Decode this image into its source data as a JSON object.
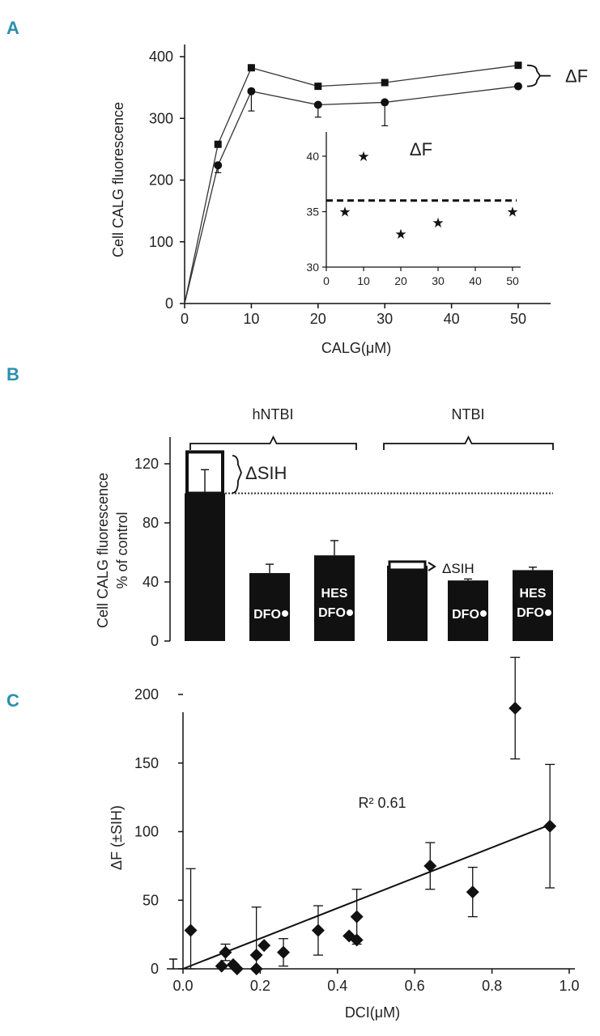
{
  "chart_data": [
    {
      "panel": "A",
      "type": "line",
      "xlabel": "CALG(μM)",
      "ylabel": "Cell CALG fluorescence",
      "xlim": [
        0,
        55
      ],
      "ylim": [
        0,
        420
      ],
      "xticks": [
        "0",
        "10",
        "20",
        "30",
        "40",
        "50"
      ],
      "yticks": [
        "0",
        "100",
        "200",
        "300",
        "400"
      ],
      "series": [
        {
          "name": "squares",
          "marker": "square",
          "x": [
            0,
            5,
            10,
            20,
            30,
            50
          ],
          "y": [
            0,
            258,
            382,
            352,
            358,
            386
          ],
          "err": [
            0,
            0,
            0,
            0,
            0,
            0
          ]
        },
        {
          "name": "circles",
          "marker": "circle",
          "x": [
            0,
            5,
            10,
            20,
            30,
            50
          ],
          "y": [
            0,
            224,
            344,
            322,
            326,
            352
          ],
          "err": [
            0,
            12,
            32,
            20,
            38,
            0
          ]
        }
      ],
      "bracket_label": "ΔF",
      "inset": {
        "type": "scatter",
        "title": "ΔF",
        "xlim": [
          0,
          55
        ],
        "ylim": [
          30,
          42
        ],
        "xticks": [
          "0",
          "10",
          "20",
          "30",
          "40",
          "50"
        ],
        "yticks": [
          "30",
          "35",
          "40"
        ],
        "marker": "★",
        "x": [
          5,
          10,
          20,
          30,
          50
        ],
        "y": [
          35,
          40,
          33,
          34,
          35
        ],
        "mean_line": 36
      }
    },
    {
      "panel": "B",
      "type": "bar",
      "ylabel_lines": [
        "Cell CALG fluorescence",
        "% of control"
      ],
      "ylim": [
        0,
        140
      ],
      "yticks": [
        "0",
        "40",
        "80",
        "120"
      ],
      "groups": [
        "hNTBI",
        "NTBI"
      ],
      "bars": [
        {
          "group": "hNTBI",
          "value": 100,
          "err": 16,
          "lines": [],
          "box_top": 128
        },
        {
          "group": "hNTBI",
          "value": 46,
          "err": 6,
          "lines": [
            "DFO"
          ]
        },
        {
          "group": "hNTBI",
          "value": 58,
          "err": 10,
          "lines": [
            "HES",
            "DFO"
          ]
        },
        {
          "group": "NTBI",
          "value": 51,
          "err": 0,
          "lines": [],
          "box_top": 51
        },
        {
          "group": "NTBI",
          "value": 41,
          "err": 1,
          "lines": [
            "DFO"
          ]
        },
        {
          "group": "NTBI",
          "value": 48,
          "err": 2,
          "lines": [
            "HES",
            "DFO"
          ]
        }
      ],
      "control_line": 100,
      "delta_label_large": "ΔSIH",
      "delta_label_small": "ΔSIH"
    },
    {
      "panel": "C",
      "type": "scatter",
      "xlabel": "DCI(μM)",
      "ylabel": "ΔF (±SIH)",
      "xlim": [
        -0.05,
        1.0
      ],
      "ylim": [
        0,
        240
      ],
      "xticks": [
        "0.0",
        "0.2",
        "0.4",
        "0.6",
        "0.8",
        "1.0"
      ],
      "yticks": [
        "0",
        "50",
        "100",
        "150",
        "200"
      ],
      "annotation": "R² 0.61",
      "regression": {
        "x0": 0.0,
        "y0": 0,
        "x1": 0.95,
        "y1": 105
      },
      "points": [
        {
          "x": 0.02,
          "y": 28,
          "err": 45
        },
        {
          "x": 0.1,
          "y": 2,
          "err": 0
        },
        {
          "x": 0.11,
          "y": 12,
          "err": 6
        },
        {
          "x": 0.13,
          "y": 3,
          "err": 0
        },
        {
          "x": 0.14,
          "y": 0,
          "err": 0
        },
        {
          "x": 0.19,
          "y": 10,
          "err": 35
        },
        {
          "x": 0.19,
          "y": 0,
          "err": 0
        },
        {
          "x": 0.21,
          "y": 17,
          "err": 0
        },
        {
          "x": 0.26,
          "y": 12,
          "err": 10
        },
        {
          "x": 0.35,
          "y": 28,
          "err": 18
        },
        {
          "x": 0.43,
          "y": 24,
          "err": 0
        },
        {
          "x": 0.45,
          "y": 38,
          "err": 20
        },
        {
          "x": 0.45,
          "y": 21,
          "err": 0
        },
        {
          "x": 0.64,
          "y": 75,
          "err": 17
        },
        {
          "x": 0.75,
          "y": 56,
          "err": 18
        },
        {
          "x": 0.86,
          "y": 190,
          "err": 37
        },
        {
          "x": 0.95,
          "y": 104,
          "err": 45
        }
      ]
    }
  ]
}
